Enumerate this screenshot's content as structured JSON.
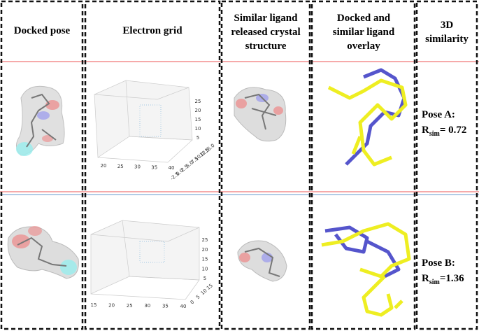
{
  "headers": [
    "Docked pose",
    "Electron grid",
    [
      "Similar ligand",
      "released crystal",
      "structure"
    ],
    [
      "Docked and",
      "similar ligand",
      "overlay"
    ],
    [
      "3D",
      "similarity"
    ]
  ],
  "rows": [
    {
      "label": "Pose A:",
      "r": "R",
      "sub": "sim",
      "rest": "= 0.72",
      "grid": {
        "zticks": [
          "25",
          "20",
          "15",
          "10",
          "5"
        ],
        "xticks": [
          "20",
          "25",
          "30",
          "35",
          "40"
        ],
        "yticks": [
          "-2.5",
          "0.0",
          "2.5",
          "5.0",
          "7.5",
          "10.0",
          "12.5",
          "15.0"
        ]
      }
    },
    {
      "label": "Pose B:",
      "r": "R",
      "sub": "sim",
      "rest": "=1.36",
      "grid": {
        "zticks": [
          "25",
          "20",
          "15",
          "10",
          "5"
        ],
        "xticks": [
          "15",
          "20",
          "25",
          "30",
          "35",
          "40"
        ],
        "yticks": [
          "0",
          "5",
          "10",
          "15"
        ]
      }
    }
  ]
}
